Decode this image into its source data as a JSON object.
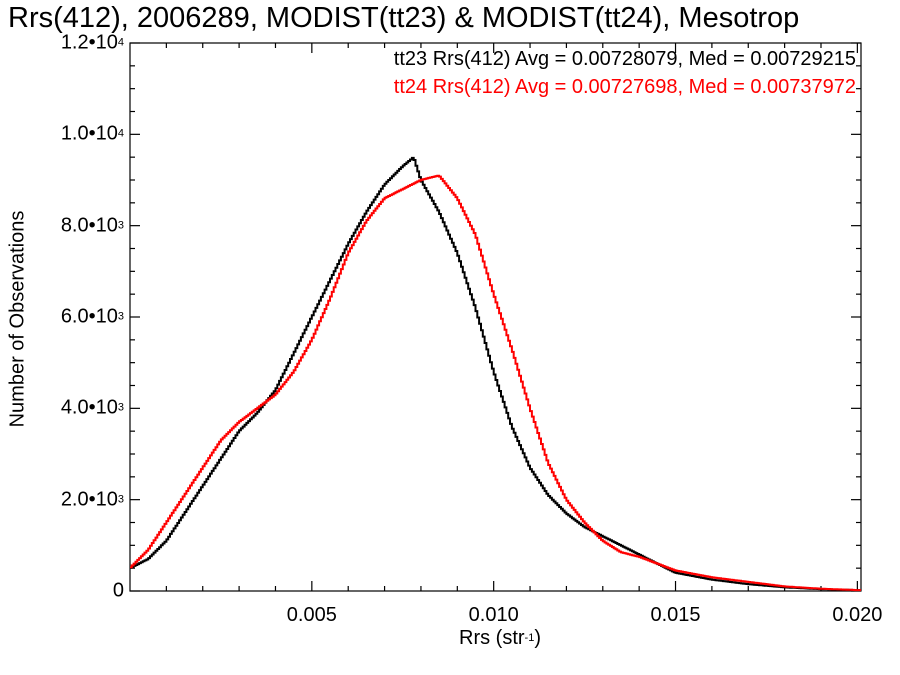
{
  "chart_data": {
    "type": "line",
    "title": "Rrs(412), 2006289, MODIST(tt23) & MODIST(tt24), Mesotrop",
    "xlabel": "Rrs (str",
    "xlabel_exponent": "-1",
    "xlabel_close": ")",
    "ylabel": "Number of Observations",
    "xlim": [
      0.0,
      0.0201
    ],
    "ylim": [
      0,
      12000
    ],
    "x_ticks": [
      {
        "value": 0.005,
        "label": "0.005"
      },
      {
        "value": 0.01,
        "label": "0.010"
      },
      {
        "value": 0.015,
        "label": "0.015"
      },
      {
        "value": 0.02,
        "label": "0.020"
      }
    ],
    "y_ticks": [
      {
        "value": 0,
        "mantissa": "0",
        "exponent": ""
      },
      {
        "value": 2000,
        "mantissa": "2.0•10",
        "exponent": "3"
      },
      {
        "value": 4000,
        "mantissa": "4.0•10",
        "exponent": "3"
      },
      {
        "value": 6000,
        "mantissa": "6.0•10",
        "exponent": "3"
      },
      {
        "value": 8000,
        "mantissa": "8.0•10",
        "exponent": "3"
      },
      {
        "value": 10000,
        "mantissa": "1.0•10",
        "exponent": "4"
      },
      {
        "value": 12000,
        "mantissa": "1.2•10",
        "exponent": "4"
      }
    ],
    "grid": false,
    "legend_position": "top-right",
    "series": [
      {
        "name": "tt23",
        "legend": "tt23 Rrs(412) Avg = 0.00728079, Med = 0.00729215",
        "color": "#000000",
        "style": "step",
        "x": [
          0.0,
          0.0005,
          0.001,
          0.0015,
          0.002,
          0.0025,
          0.003,
          0.0035,
          0.004,
          0.0045,
          0.005,
          0.0055,
          0.006,
          0.0065,
          0.007,
          0.0075,
          0.0078,
          0.008,
          0.0085,
          0.009,
          0.0095,
          0.01,
          0.0105,
          0.011,
          0.0115,
          0.012,
          0.0125,
          0.013,
          0.0135,
          0.014,
          0.0145,
          0.015,
          0.016,
          0.017,
          0.018,
          0.019,
          0.02
        ],
        "y": [
          500,
          700,
          1100,
          1700,
          2300,
          2900,
          3500,
          3900,
          4400,
          5200,
          6000,
          6800,
          7600,
          8300,
          8900,
          9300,
          9500,
          9000,
          8300,
          7400,
          6200,
          4800,
          3600,
          2700,
          2100,
          1700,
          1400,
          1200,
          1000,
          800,
          600,
          400,
          250,
          150,
          80,
          40,
          20
        ]
      },
      {
        "name": "tt24",
        "legend": "tt24 Rrs(412) Avg = 0.00727698, Med = 0.00737972",
        "color": "#ff0000",
        "style": "step",
        "x": [
          0.0,
          0.0005,
          0.001,
          0.0015,
          0.002,
          0.0025,
          0.003,
          0.0035,
          0.004,
          0.0045,
          0.005,
          0.0055,
          0.006,
          0.0065,
          0.007,
          0.0075,
          0.008,
          0.0085,
          0.009,
          0.0095,
          0.01,
          0.0105,
          0.011,
          0.0115,
          0.012,
          0.0125,
          0.013,
          0.0135,
          0.014,
          0.0145,
          0.015,
          0.016,
          0.017,
          0.018,
          0.019,
          0.02
        ],
        "y": [
          500,
          900,
          1500,
          2100,
          2700,
          3300,
          3700,
          4000,
          4300,
          4800,
          5500,
          6400,
          7400,
          8100,
          8600,
          8800,
          9000,
          9100,
          8600,
          7800,
          6500,
          5300,
          4000,
          2800,
          2000,
          1500,
          1100,
          850,
          750,
          600,
          450,
          300,
          200,
          100,
          50,
          20
        ]
      }
    ]
  }
}
